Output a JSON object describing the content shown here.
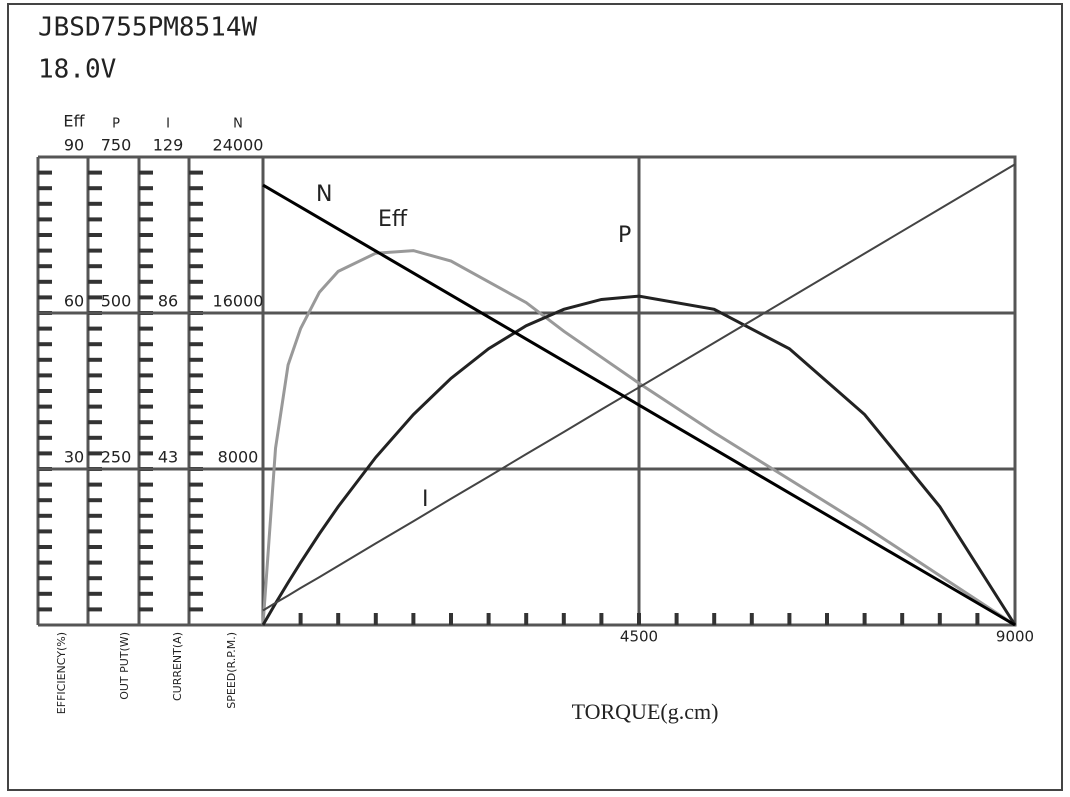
{
  "chart_data": {
    "type": "line",
    "title": "JBSD755PM8514W",
    "subtitle": "18.0V",
    "x_label": "TORQUE(g.cm)",
    "xlim": [
      0,
      9000
    ],
    "xticks": [
      4500,
      9000
    ],
    "x": [
      0,
      150,
      300,
      450,
      675,
      900,
      1350,
      1800,
      2250,
      2700,
      3150,
      3600,
      4050,
      4500,
      5400,
      6300,
      7200,
      8100,
      9000
    ],
    "y_axes": [
      {
        "title": "Eff",
        "label": "EFFICIENCY(%)",
        "ylim": [
          0,
          90
        ],
        "yticks": [
          30,
          60,
          90
        ],
        "series": {
          "name": "Eff",
          "color": "#999999",
          "values": [
            0,
            34,
            50,
            57,
            64,
            68,
            71.5,
            72,
            70,
            66,
            62,
            56.5,
            51.5,
            46.5,
            37,
            28,
            19,
            9.5,
            0
          ]
        }
      },
      {
        "title": "P",
        "label": "OUT PUT(W)",
        "ylim": [
          0,
          750
        ],
        "yticks": [
          250,
          500,
          750
        ],
        "series": {
          "name": "P",
          "color": "#222222",
          "values": [
            0,
            34.6,
            67.9,
            100.1,
            146.2,
            189.7,
            268.8,
            337.3,
            395.3,
            442.7,
            479.6,
            505.9,
            521.7,
            527,
            505.9,
            442.7,
            337.3,
            189.7,
            0
          ]
        }
      },
      {
        "title": "I",
        "label": "CURRENT(A)",
        "ylim": [
          0,
          129
        ],
        "yticks": [
          43,
          86,
          129
        ],
        "series": {
          "name": "I",
          "color": "#444444",
          "values": [
            4,
            6.1,
            8.1,
            10.2,
            13.2,
            16.3,
            22.5,
            28.6,
            34.8,
            40.9,
            47.1,
            53.2,
            59.4,
            65.5,
            77.8,
            90.1,
            102.4,
            114.7,
            127
          ]
        }
      },
      {
        "title": "N",
        "label": "SPEED(R.P.M.)",
        "ylim": [
          0,
          24000
        ],
        "yticks": [
          8000,
          16000,
          24000
        ],
        "series": {
          "name": "N",
          "color": "#000000",
          "values": [
            22560,
            22184,
            21808,
            21432,
            20868,
            20304,
            19176,
            18048,
            16920,
            15792,
            14664,
            13536,
            12408,
            11280,
            9024,
            6768,
            4512,
            2256,
            0
          ]
        }
      }
    ]
  }
}
